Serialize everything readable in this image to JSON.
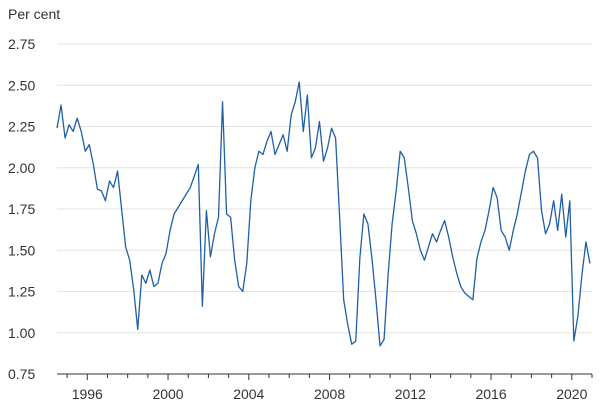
{
  "chart_data": {
    "type": "line",
    "title": "",
    "xlabel": "",
    "ylabel": "Per cent",
    "xlim": [
      1994.5,
      2021.0
    ],
    "ylim": [
      0.75,
      2.75
    ],
    "grid": "horizontal",
    "legend": "none",
    "x_ticks": [
      1996,
      2000,
      2004,
      2008,
      2012,
      2016,
      2020
    ],
    "x_tick_labels": [
      "1996",
      "2000",
      "2004",
      "2008",
      "2012",
      "2016",
      "2020"
    ],
    "y_ticks": [
      0.75,
      1.0,
      1.25,
      1.5,
      1.75,
      2.0,
      2.25,
      2.5,
      2.75
    ],
    "y_tick_labels": [
      "0.75",
      "1.00",
      "1.25",
      "1.50",
      "1.75",
      "2.00",
      "2.25",
      "2.50",
      "2.75"
    ],
    "colors": {
      "line": "#1f5fa6",
      "grid": "#e3e3e3",
      "axis": "#333333"
    },
    "series": [
      {
        "name": "",
        "x": [
          1994.5,
          1994.7,
          1994.9,
          1995.1,
          1995.3,
          1995.5,
          1995.7,
          1995.9,
          1996.1,
          1996.3,
          1996.5,
          1996.7,
          1996.9,
          1997.1,
          1997.3,
          1997.5,
          1997.7,
          1997.9,
          1998.1,
          1998.3,
          1998.5,
          1998.7,
          1998.9,
          1999.1,
          1999.3,
          1999.5,
          1999.7,
          1999.9,
          2000.1,
          2000.3,
          2000.5,
          2000.7,
          2000.9,
          2001.1,
          2001.3,
          2001.5,
          2001.7,
          2001.9,
          2002.1,
          2002.3,
          2002.5,
          2002.7,
          2002.9,
          2003.1,
          2003.3,
          2003.5,
          2003.7,
          2003.9,
          2004.1,
          2004.3,
          2004.5,
          2004.7,
          2004.9,
          2005.1,
          2005.3,
          2005.5,
          2005.7,
          2005.9,
          2006.1,
          2006.3,
          2006.5,
          2006.7,
          2006.9,
          2007.1,
          2007.3,
          2007.5,
          2007.7,
          2007.9,
          2008.1,
          2008.3,
          2008.5,
          2008.7,
          2008.9,
          2009.1,
          2009.3,
          2009.5,
          2009.7,
          2009.9,
          2010.1,
          2010.3,
          2010.5,
          2010.7,
          2010.9,
          2011.1,
          2011.3,
          2011.5,
          2011.7,
          2011.9,
          2012.1,
          2012.3,
          2012.5,
          2012.7,
          2012.9,
          2013.1,
          2013.3,
          2013.5,
          2013.7,
          2013.9,
          2014.1,
          2014.3,
          2014.5,
          2014.7,
          2014.9,
          2015.1,
          2015.3,
          2015.5,
          2015.7,
          2015.9,
          2016.1,
          2016.3,
          2016.5,
          2016.7,
          2016.9,
          2017.1,
          2017.3,
          2017.5,
          2017.7,
          2017.9,
          2018.1,
          2018.3,
          2018.5,
          2018.7,
          2018.9,
          2019.1,
          2019.3,
          2019.5,
          2019.7,
          2019.9,
          2020.1,
          2020.3,
          2020.5,
          2020.7,
          2020.9
        ],
        "values": [
          2.24,
          2.38,
          2.18,
          2.26,
          2.22,
          2.3,
          2.22,
          2.1,
          2.14,
          2.02,
          1.87,
          1.86,
          1.8,
          1.92,
          1.88,
          1.98,
          1.75,
          1.52,
          1.44,
          1.26,
          1.02,
          1.35,
          1.3,
          1.38,
          1.28,
          1.3,
          1.42,
          1.48,
          1.62,
          1.72,
          1.76,
          1.8,
          1.84,
          1.88,
          1.95,
          2.02,
          1.16,
          1.74,
          1.46,
          1.6,
          1.7,
          2.4,
          1.72,
          1.7,
          1.44,
          1.28,
          1.25,
          1.42,
          1.8,
          2.0,
          2.1,
          2.08,
          2.16,
          2.22,
          2.08,
          2.14,
          2.2,
          2.1,
          2.32,
          2.4,
          2.52,
          2.22,
          2.44,
          2.06,
          2.12,
          2.28,
          2.04,
          2.12,
          2.24,
          2.18,
          1.7,
          1.2,
          1.05,
          0.93,
          0.95,
          1.45,
          1.72,
          1.66,
          1.45,
          1.2,
          0.92,
          0.96,
          1.35,
          1.66,
          1.86,
          2.1,
          2.06,
          1.88,
          1.68,
          1.6,
          1.5,
          1.44,
          1.52,
          1.6,
          1.55,
          1.62,
          1.68,
          1.58,
          1.46,
          1.36,
          1.28,
          1.24,
          1.22,
          1.2,
          1.45,
          1.55,
          1.62,
          1.74,
          1.88,
          1.82,
          1.62,
          1.58,
          1.5,
          1.62,
          1.72,
          1.85,
          1.98,
          2.08,
          2.1,
          2.06,
          1.74,
          1.6,
          1.66,
          1.8,
          1.62,
          1.84,
          1.58,
          1.8,
          0.95,
          1.1,
          1.35,
          1.55,
          1.42
        ]
      }
    ]
  }
}
